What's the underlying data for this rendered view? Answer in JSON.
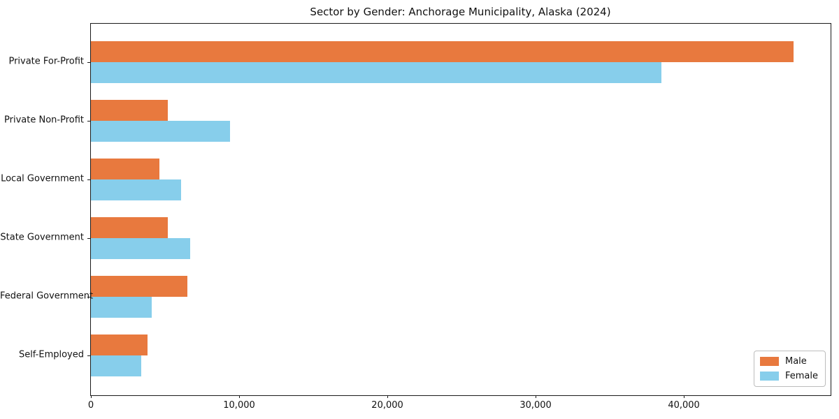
{
  "chart_data": {
    "type": "bar",
    "orientation": "horizontal",
    "title": "Sector by Gender: Anchorage Municipality, Alaska (2024)",
    "categories": [
      "Private For-Profit",
      "Private Non-Profit",
      "Local Government",
      "State Government",
      "Federal Government",
      "Self-Employed"
    ],
    "series": [
      {
        "name": "Male",
        "color": "#e8793e",
        "values": [
          47400,
          5200,
          4600,
          5200,
          6500,
          3800
        ]
      },
      {
        "name": "Female",
        "color": "#87ceeb",
        "values": [
          38500,
          9400,
          6100,
          6700,
          4100,
          3400
        ]
      }
    ],
    "xlabel": "",
    "ylabel": "",
    "xlim": [
      0,
      49900
    ],
    "xticks": [
      0,
      10000,
      20000,
      30000,
      40000
    ],
    "xtick_labels": [
      "0",
      "10,000",
      "20,000",
      "30,000",
      "40,000"
    ],
    "grid": false,
    "plot_background": "#ffffff",
    "spine_color": "#1a1a1a",
    "legend": {
      "position": "lower right",
      "entries": [
        "Male",
        "Female"
      ]
    }
  }
}
